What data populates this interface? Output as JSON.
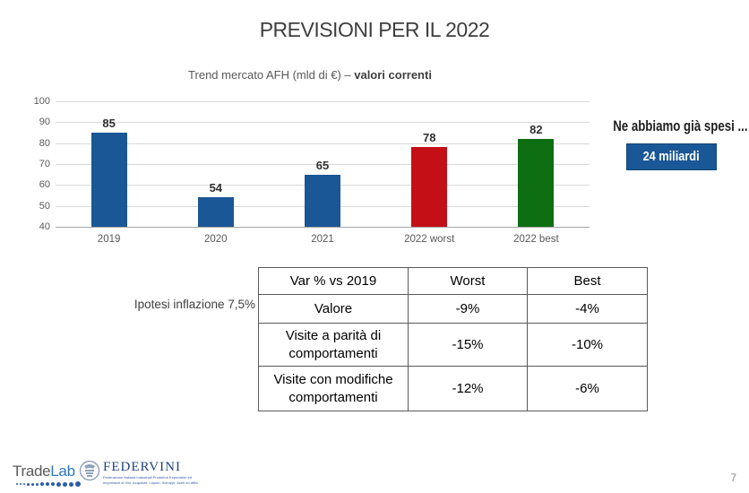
{
  "title": "PREVISIONI PER IL 2022",
  "subtitle": {
    "regular": "Trend mercato AFH (mld di €) – ",
    "bold": "valori correnti"
  },
  "chart_data": {
    "type": "bar",
    "title": "Trend mercato AFH (mld di €) – valori correnti",
    "categories": [
      "2019",
      "2020",
      "2021",
      "2022 worst",
      "2022 best"
    ],
    "values": [
      85,
      54,
      65,
      78,
      82
    ],
    "bar_colors": [
      "#1a5796",
      "#1a5796",
      "#1a5796",
      "#c40f16",
      "#0d6e12"
    ],
    "ylim": [
      40,
      100
    ],
    "ytick_step": 10,
    "grid": true,
    "value_labels": true,
    "legend": "none",
    "xlabel": "",
    "ylabel": ""
  },
  "annotation": {
    "label": "Ne abbiamo già spesi ...",
    "badge": "24 miliardi",
    "badge_color": "#1a5796"
  },
  "inflation_note": "Ipotesi inflazione 7,5%",
  "table": {
    "headers": [
      "Var % vs 2019",
      "Worst",
      "Best"
    ],
    "rows": [
      {
        "label": "Valore",
        "worst": "-9%",
        "best": "-4%"
      },
      {
        "label": "Visite a parità di comportamenti",
        "worst": "-15%",
        "best": "-10%"
      },
      {
        "label": "Visite con modifiche comportamenti",
        "worst": "-12%",
        "best": "-6%"
      }
    ]
  },
  "footer": {
    "tradelab": {
      "part1": "Trade",
      "part2": "Lab"
    },
    "federvini": {
      "name": "FEDERVINI",
      "tagline_line1": "Federazione Italiana Industriali Produttori Esportatori ed",
      "tagline_line2": "Importatori di Vini, Acquaviti, Liquori, Sciroppi, Aceti ed affini"
    },
    "page_number": "7"
  }
}
